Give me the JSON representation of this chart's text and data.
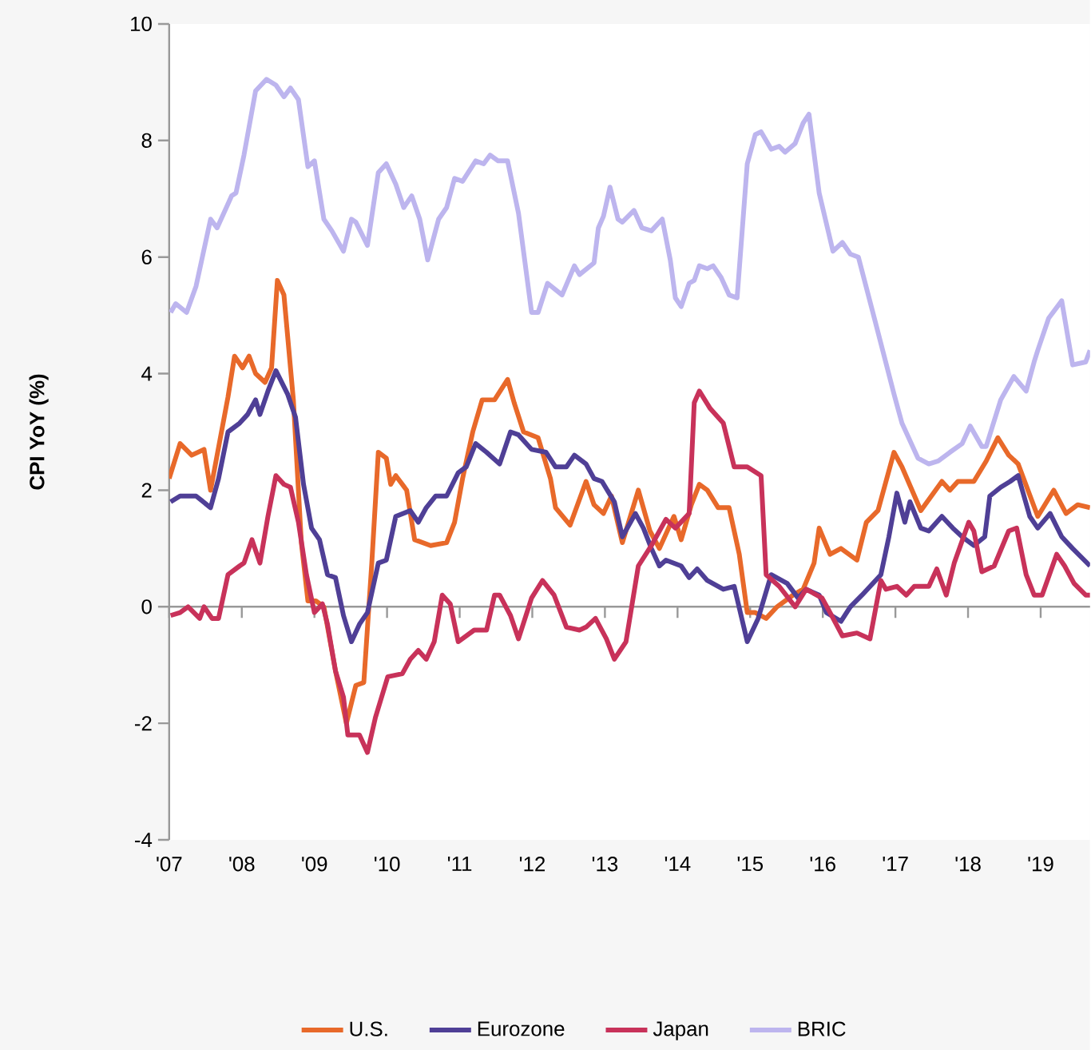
{
  "chart_data": {
    "type": "line",
    "ylabel": "CPI YoY (%)",
    "xlim": [
      2007,
      2019.68
    ],
    "ylim": [
      -4,
      10
    ],
    "xticks": [
      {
        "value": 2007,
        "label": "'07"
      },
      {
        "value": 2008,
        "label": "'08"
      },
      {
        "value": 2009,
        "label": "'09"
      },
      {
        "value": 2010,
        "label": "'10"
      },
      {
        "value": 2011,
        "label": "'11"
      },
      {
        "value": 2012,
        "label": "'12"
      },
      {
        "value": 2013,
        "label": "'13"
      },
      {
        "value": 2014,
        "label": "'14"
      },
      {
        "value": 2015,
        "label": "'15"
      },
      {
        "value": 2016,
        "label": "'16"
      },
      {
        "value": 2017,
        "label": "'17"
      },
      {
        "value": 2018,
        "label": "'18"
      },
      {
        "value": 2019,
        "label": "'19"
      }
    ],
    "yticks": [
      -4,
      -2,
      0,
      2,
      4,
      6,
      8,
      10
    ],
    "legend": "bottom",
    "marker": "none",
    "line_style": "solid",
    "series": [
      {
        "name": "U.S.",
        "color": "#e8692a",
        "x": [
          2007.0,
          2007.15,
          2007.31,
          2007.48,
          2007.57,
          2007.81,
          2007.9,
          2008.01,
          2008.1,
          2008.19,
          2008.32,
          2008.41,
          2008.49,
          2008.58,
          2008.71,
          2008.82,
          2008.91,
          2009.02,
          2009.13,
          2009.29,
          2009.44,
          2009.57,
          2009.68,
          2009.79,
          2009.88,
          2009.99,
          2010.05,
          2010.12,
          2010.27,
          2010.38,
          2010.6,
          2010.82,
          2010.93,
          2011.04,
          2011.18,
          2011.31,
          2011.48,
          2011.66,
          2011.75,
          2011.88,
          2012.08,
          2012.25,
          2012.32,
          2012.52,
          2012.74,
          2012.85,
          2012.98,
          2013.09,
          2013.24,
          2013.35,
          2013.46,
          2013.62,
          2013.75,
          2013.95,
          2014.05,
          2014.19,
          2014.3,
          2014.41,
          2014.56,
          2014.71,
          2014.85,
          2014.96,
          2015.07,
          2015.22,
          2015.37,
          2015.59,
          2015.73,
          2015.88,
          2015.95,
          2016.1,
          2016.25,
          2016.47,
          2016.6,
          2016.76,
          2016.98,
          2017.09,
          2017.35,
          2017.64,
          2017.75,
          2017.86,
          2018.08,
          2018.25,
          2018.41,
          2018.56,
          2018.69,
          2018.96,
          2019.18,
          2019.35,
          2019.51,
          2019.68
        ],
        "values": [
          2.2,
          2.8,
          2.6,
          2.7,
          2.0,
          3.6,
          4.3,
          4.1,
          4.3,
          4.0,
          3.85,
          4.1,
          5.6,
          5.35,
          3.55,
          1.1,
          0.1,
          0.1,
          0.0,
          -1.1,
          -2.0,
          -1.35,
          -1.3,
          0.75,
          2.65,
          2.55,
          2.1,
          2.25,
          2.0,
          1.15,
          1.05,
          1.1,
          1.45,
          2.2,
          3.0,
          3.55,
          3.55,
          3.9,
          3.5,
          3.0,
          2.9,
          2.2,
          1.7,
          1.4,
          2.15,
          1.75,
          1.6,
          1.9,
          1.1,
          1.55,
          2.0,
          1.3,
          1.0,
          1.55,
          1.15,
          1.75,
          2.1,
          2.0,
          1.7,
          1.7,
          0.9,
          -0.1,
          -0.1,
          -0.2,
          0.0,
          0.2,
          0.3,
          0.75,
          1.35,
          0.9,
          1.0,
          0.8,
          1.45,
          1.65,
          2.65,
          2.4,
          1.65,
          2.15,
          2.0,
          2.15,
          2.15,
          2.5,
          2.9,
          2.6,
          2.45,
          1.55,
          2.0,
          1.6,
          1.75,
          1.7
        ]
      },
      {
        "name": "Eurozone",
        "color": "#4f3f96",
        "x": [
          2007.02,
          2007.15,
          2007.37,
          2007.57,
          2007.68,
          2007.81,
          2007.97,
          2008.08,
          2008.19,
          2008.25,
          2008.36,
          2008.47,
          2008.63,
          2008.74,
          2008.85,
          2008.96,
          2009.07,
          2009.18,
          2009.29,
          2009.4,
          2009.51,
          2009.62,
          2009.73,
          2009.88,
          2009.99,
          2010.12,
          2010.32,
          2010.43,
          2010.54,
          2010.67,
          2010.82,
          2010.98,
          2011.09,
          2011.22,
          2011.37,
          2011.55,
          2011.7,
          2011.81,
          2011.99,
          2012.19,
          2012.32,
          2012.47,
          2012.58,
          2012.74,
          2012.85,
          2012.96,
          2013.13,
          2013.24,
          2013.42,
          2013.53,
          2013.64,
          2013.75,
          2013.84,
          2014.05,
          2014.16,
          2014.27,
          2014.41,
          2014.63,
          2014.78,
          2014.96,
          2015.11,
          2015.29,
          2015.51,
          2015.66,
          2015.77,
          2015.95,
          2016.05,
          2016.25,
          2016.38,
          2016.54,
          2016.8,
          2016.91,
          2017.02,
          2017.13,
          2017.2,
          2017.35,
          2017.46,
          2017.64,
          2017.79,
          2017.92,
          2018.08,
          2018.23,
          2018.3,
          2018.45,
          2018.58,
          2018.69,
          2018.85,
          2018.96,
          2019.13,
          2019.29,
          2019.44,
          2019.68
        ],
        "values": [
          1.8,
          1.9,
          1.9,
          1.7,
          2.2,
          3.0,
          3.15,
          3.3,
          3.55,
          3.3,
          3.7,
          4.05,
          3.65,
          3.25,
          2.1,
          1.35,
          1.15,
          0.55,
          0.5,
          -0.15,
          -0.6,
          -0.3,
          -0.1,
          0.75,
          0.8,
          1.55,
          1.65,
          1.45,
          1.7,
          1.9,
          1.9,
          2.3,
          2.4,
          2.8,
          2.65,
          2.45,
          3.0,
          2.95,
          2.7,
          2.65,
          2.4,
          2.4,
          2.6,
          2.45,
          2.2,
          2.15,
          1.8,
          1.2,
          1.6,
          1.35,
          1.0,
          0.7,
          0.8,
          0.7,
          0.5,
          0.65,
          0.45,
          0.3,
          0.35,
          -0.6,
          -0.2,
          0.55,
          0.4,
          0.15,
          0.3,
          0.2,
          -0.1,
          -0.25,
          0.0,
          0.2,
          0.55,
          1.2,
          1.95,
          1.45,
          1.8,
          1.35,
          1.3,
          1.55,
          1.35,
          1.2,
          1.05,
          1.2,
          1.9,
          2.05,
          2.15,
          2.25,
          1.55,
          1.35,
          1.6,
          1.2,
          1.0,
          0.7
        ]
      },
      {
        "name": "Japan",
        "color": "#c8325a",
        "x": [
          2007.02,
          2007.15,
          2007.26,
          2007.42,
          2007.48,
          2007.59,
          2007.68,
          2007.81,
          2007.97,
          2008.03,
          2008.14,
          2008.25,
          2008.36,
          2008.47,
          2008.58,
          2008.67,
          2008.78,
          2008.89,
          2009.0,
          2009.11,
          2009.18,
          2009.29,
          2009.4,
          2009.46,
          2009.62,
          2009.73,
          2009.84,
          2010.01,
          2010.21,
          2010.32,
          2010.43,
          2010.54,
          2010.65,
          2010.76,
          2010.87,
          2010.98,
          2011.2,
          2011.37,
          2011.48,
          2011.55,
          2011.7,
          2011.81,
          2011.99,
          2012.14,
          2012.3,
          2012.47,
          2012.65,
          2012.74,
          2012.87,
          2013.02,
          2013.13,
          2013.29,
          2013.46,
          2013.64,
          2013.84,
          2013.97,
          2014.16,
          2014.23,
          2014.3,
          2014.45,
          2014.63,
          2014.78,
          2014.96,
          2015.15,
          2015.22,
          2015.4,
          2015.62,
          2015.77,
          2015.99,
          2016.1,
          2016.27,
          2016.47,
          2016.65,
          2016.8,
          2016.87,
          2017.02,
          2017.15,
          2017.26,
          2017.46,
          2017.57,
          2017.7,
          2017.81,
          2018.01,
          2018.08,
          2018.19,
          2018.36,
          2018.56,
          2018.67,
          2018.8,
          2018.91,
          2019.02,
          2019.22,
          2019.33,
          2019.46,
          2019.62,
          2019.68
        ],
        "values": [
          -0.15,
          -0.1,
          0.0,
          -0.2,
          0.0,
          -0.2,
          -0.2,
          0.55,
          0.7,
          0.75,
          1.15,
          0.75,
          1.55,
          2.25,
          2.1,
          2.05,
          1.45,
          0.55,
          -0.1,
          0.05,
          -0.3,
          -1.1,
          -1.55,
          -2.2,
          -2.2,
          -2.5,
          -1.9,
          -1.2,
          -1.15,
          -0.9,
          -0.75,
          -0.9,
          -0.6,
          0.2,
          0.05,
          -0.6,
          -0.4,
          -0.4,
          0.2,
          0.2,
          -0.15,
          -0.55,
          0.15,
          0.45,
          0.2,
          -0.35,
          -0.4,
          -0.35,
          -0.2,
          -0.55,
          -0.9,
          -0.6,
          0.7,
          1.05,
          1.5,
          1.35,
          1.6,
          3.5,
          3.7,
          3.4,
          3.15,
          2.4,
          2.4,
          2.25,
          0.55,
          0.35,
          0.0,
          0.3,
          0.15,
          -0.1,
          -0.5,
          -0.45,
          -0.55,
          0.45,
          0.3,
          0.35,
          0.2,
          0.35,
          0.35,
          0.65,
          0.2,
          0.75,
          1.45,
          1.3,
          0.6,
          0.7,
          1.3,
          1.35,
          0.55,
          0.2,
          0.2,
          0.9,
          0.7,
          0.4,
          0.2,
          0.2
        ]
      },
      {
        "name": "BRIC",
        "color": "#bdb5ee",
        "x": [
          2007.02,
          2007.09,
          2007.24,
          2007.37,
          2007.57,
          2007.66,
          2007.86,
          2007.92,
          2008.03,
          2008.19,
          2008.34,
          2008.47,
          2008.58,
          2008.67,
          2008.78,
          2008.91,
          2009.0,
          2009.13,
          2009.24,
          2009.4,
          2009.51,
          2009.57,
          2009.73,
          2009.88,
          2009.99,
          2010.12,
          2010.23,
          2010.34,
          2010.45,
          2010.56,
          2010.71,
          2010.82,
          2010.93,
          2011.04,
          2011.22,
          2011.33,
          2011.42,
          2011.53,
          2011.66,
          2011.81,
          2011.99,
          2012.08,
          2012.21,
          2012.41,
          2012.58,
          2012.65,
          2012.85,
          2012.91,
          2012.98,
          2013.07,
          2013.18,
          2013.24,
          2013.4,
          2013.51,
          2013.64,
          2013.79,
          2013.9,
          2013.97,
          2014.05,
          2014.16,
          2014.23,
          2014.3,
          2014.41,
          2014.49,
          2014.6,
          2014.71,
          2014.82,
          2014.96,
          2015.07,
          2015.15,
          2015.29,
          2015.4,
          2015.48,
          2015.62,
          2015.73,
          2015.81,
          2015.95,
          2016.14,
          2016.27,
          2016.38,
          2016.49,
          2016.71,
          2016.98,
          2017.09,
          2017.31,
          2017.46,
          2017.59,
          2017.75,
          2017.92,
          2018.03,
          2018.19,
          2018.25,
          2018.45,
          2018.63,
          2018.8,
          2018.91,
          2018.96,
          2019.11,
          2019.29,
          2019.44,
          2019.62,
          2019.68
        ],
        "values": [
          5.05,
          5.2,
          5.05,
          5.5,
          6.65,
          6.5,
          7.05,
          7.1,
          7.75,
          8.85,
          9.05,
          8.95,
          8.75,
          8.9,
          8.7,
          7.55,
          7.65,
          6.65,
          6.45,
          6.1,
          6.65,
          6.6,
          6.2,
          7.45,
          7.6,
          7.25,
          6.85,
          7.05,
          6.65,
          5.95,
          6.65,
          6.85,
          7.35,
          7.3,
          7.65,
          7.6,
          7.75,
          7.65,
          7.65,
          6.75,
          5.05,
          5.05,
          5.55,
          5.35,
          5.85,
          5.7,
          5.9,
          6.5,
          6.7,
          7.2,
          6.65,
          6.6,
          6.8,
          6.5,
          6.45,
          6.65,
          5.95,
          5.3,
          5.15,
          5.55,
          5.6,
          5.85,
          5.8,
          5.85,
          5.65,
          5.35,
          5.3,
          7.6,
          8.1,
          8.15,
          7.85,
          7.9,
          7.8,
          7.95,
          8.3,
          8.45,
          7.1,
          6.1,
          6.25,
          6.05,
          6.0,
          4.95,
          3.65,
          3.15,
          2.55,
          2.45,
          2.5,
          2.65,
          2.8,
          3.1,
          2.75,
          2.75,
          3.55,
          3.95,
          3.7,
          4.2,
          4.4,
          4.95,
          5.25,
          4.15,
          4.2,
          4.4
        ]
      }
    ]
  }
}
